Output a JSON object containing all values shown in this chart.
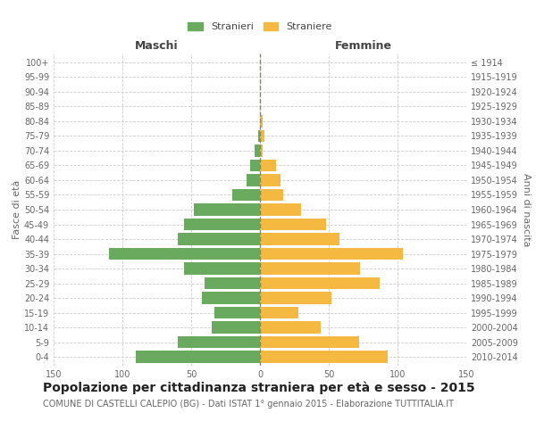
{
  "age_groups": [
    "0-4",
    "5-9",
    "10-14",
    "15-19",
    "20-24",
    "25-29",
    "30-34",
    "35-39",
    "40-44",
    "45-49",
    "50-54",
    "55-59",
    "60-64",
    "65-69",
    "70-74",
    "75-79",
    "80-84",
    "85-89",
    "90-94",
    "95-99",
    "100+"
  ],
  "birth_years": [
    "2010-2014",
    "2005-2009",
    "2000-2004",
    "1995-1999",
    "1990-1994",
    "1985-1989",
    "1980-1984",
    "1975-1979",
    "1970-1974",
    "1965-1969",
    "1960-1964",
    "1955-1959",
    "1950-1954",
    "1945-1949",
    "1940-1944",
    "1935-1939",
    "1930-1934",
    "1925-1929",
    "1920-1924",
    "1915-1919",
    "≤ 1914"
  ],
  "maschi": [
    90,
    60,
    35,
    33,
    42,
    40,
    55,
    110,
    60,
    55,
    48,
    20,
    10,
    7,
    4,
    1,
    0,
    0,
    0,
    0,
    0
  ],
  "femmine": [
    93,
    72,
    44,
    28,
    52,
    87,
    73,
    104,
    58,
    48,
    30,
    17,
    15,
    12,
    2,
    3,
    2,
    0,
    0,
    0,
    0
  ],
  "male_color": "#6aaa5f",
  "female_color": "#f5b942",
  "center_line_color": "#888860",
  "grid_color": "#cccccc",
  "background_color": "#ffffff",
  "bar_height": 0.8,
  "xlim": 150,
  "title": "Popolazione per cittadinanza straniera per età e sesso - 2015",
  "subtitle": "COMUNE DI CASTELLI CALEPIO (BG) - Dati ISTAT 1° gennaio 2015 - Elaborazione TUTTITALIA.IT",
  "header_left": "Maschi",
  "header_right": "Femmine",
  "ylabel_left": "Fasce di età",
  "ylabel_right": "Anni di nascita",
  "legend_male": "Stranieri",
  "legend_female": "Straniere",
  "title_fontsize": 10,
  "subtitle_fontsize": 7,
  "header_fontsize": 9,
  "axis_label_fontsize": 8,
  "tick_fontsize": 7
}
